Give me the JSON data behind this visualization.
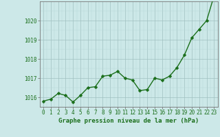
{
  "x": [
    0,
    1,
    2,
    3,
    4,
    5,
    6,
    7,
    8,
    9,
    10,
    11,
    12,
    13,
    14,
    15,
    16,
    17,
    18,
    19,
    20,
    21,
    22,
    23
  ],
  "y": [
    1015.8,
    1015.9,
    1016.2,
    1016.1,
    1015.75,
    1016.1,
    1016.5,
    1016.55,
    1017.1,
    1017.15,
    1017.35,
    1017.0,
    1016.9,
    1016.35,
    1016.4,
    1017.0,
    1016.9,
    1017.1,
    1017.55,
    1018.2,
    1019.1,
    1019.55,
    1020.0,
    1021.3
  ],
  "line_color": "#1a6e1a",
  "marker": "D",
  "marker_size": 2.5,
  "linewidth": 1.0,
  "background_color": "#cce8e8",
  "grid_color_minor": "#b8d8d8",
  "grid_color_major": "#a0c0c0",
  "xlim": [
    -0.5,
    23.5
  ],
  "ylim": [
    1015.5,
    1021.0
  ],
  "yticks": [
    1016,
    1017,
    1018,
    1019,
    1020
  ],
  "xtick_labels": [
    "0",
    "1",
    "2",
    "3",
    "4",
    "5",
    "6",
    "7",
    "8",
    "9",
    "10",
    "11",
    "12",
    "13",
    "14",
    "15",
    "16",
    "17",
    "18",
    "19",
    "20",
    "21",
    "22",
    "23"
  ],
  "xlabel": "Graphe pression niveau de la mer (hPa)",
  "xlabel_fontsize": 6.5,
  "tick_fontsize": 5.5,
  "ytick_fontsize": 5.5,
  "axis_color": "#1a6e1a",
  "spine_color": "#777777"
}
